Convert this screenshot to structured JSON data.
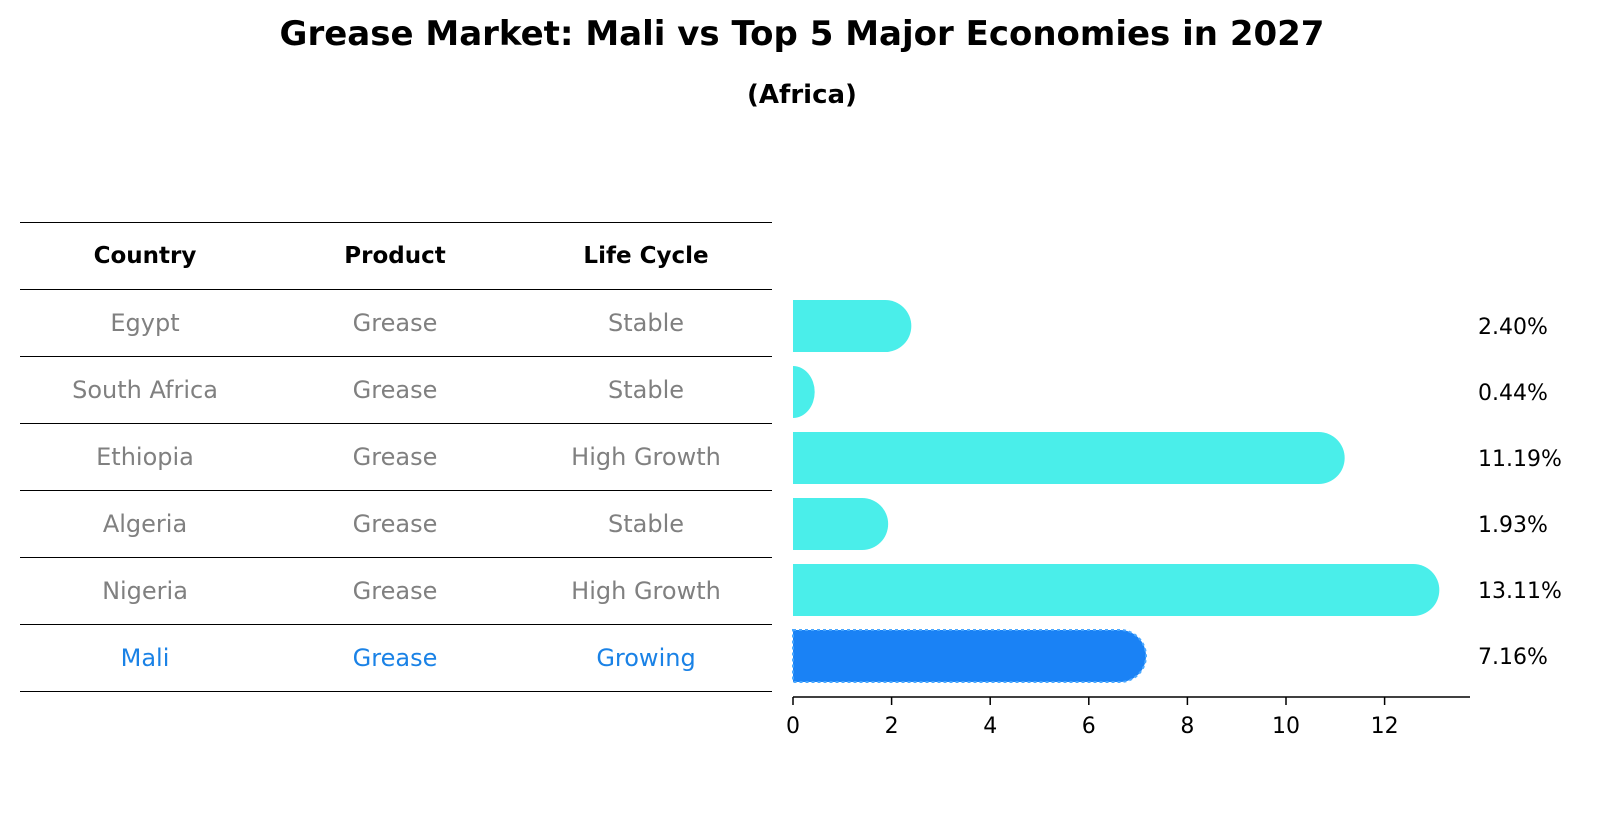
{
  "chart_data": {
    "type": "bar",
    "orientation": "horizontal",
    "title": "Grease Market: Mali vs Top 5 Major Economies in 2027",
    "subtitle": "(Africa)",
    "table": {
      "columns": [
        "Country",
        "Product",
        "Life Cycle"
      ],
      "rows": [
        {
          "country": "Egypt",
          "product": "Grease",
          "life_cycle": "Stable"
        },
        {
          "country": "South Africa",
          "product": "Grease",
          "life_cycle": "Stable"
        },
        {
          "country": "Ethiopia",
          "product": "Grease",
          "life_cycle": "High Growth"
        },
        {
          "country": "Algeria",
          "product": "Grease",
          "life_cycle": "Stable"
        },
        {
          "country": "Nigeria",
          "product": "Grease",
          "life_cycle": "High Growth"
        },
        {
          "country": "Mali",
          "product": "Grease",
          "life_cycle": "Growing"
        }
      ]
    },
    "categories": [
      "Egypt",
      "South Africa",
      "Ethiopia",
      "Algeria",
      "Nigeria",
      "Mali"
    ],
    "values": [
      2.4,
      0.44,
      11.19,
      1.93,
      13.11,
      7.16
    ],
    "value_labels": [
      "2.40%",
      "0.44%",
      "11.19%",
      "1.93%",
      "13.11%",
      "7.16%"
    ],
    "highlight": "Mali",
    "xlim": [
      0,
      13.8
    ],
    "xticks": [
      0,
      2,
      4,
      6,
      8,
      10,
      12
    ],
    "colors": {
      "default": "#4aeeea",
      "highlight": "#1a82f5",
      "highlight_text": "#1a82e6",
      "muted_text": "#808080"
    }
  }
}
